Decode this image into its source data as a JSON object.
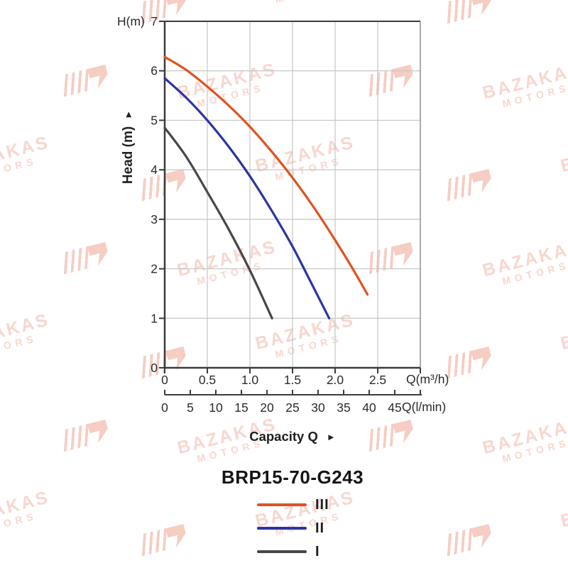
{
  "title": "BRP15-70-G243",
  "icons": {
    "right_arrow": "►"
  },
  "watermark": {
    "line1": "BAZAKAS",
    "line2": "MOTORS",
    "text_color": "#f7d7cf",
    "logo_color": "#f5cdc3"
  },
  "chart_data": {
    "type": "line",
    "title": "BRP15-70-G243",
    "grid": true,
    "legend_position": "bottom",
    "capacity_label": "Capacity Q",
    "y_axis": {
      "label": "H(m)",
      "axis_title": "Head (m)",
      "ticks": [
        0,
        1,
        2,
        3,
        4,
        5,
        6,
        7
      ],
      "tick_labels": [
        "0",
        "1",
        "2",
        "3",
        "4",
        "5",
        "6",
        "7"
      ],
      "range": [
        0,
        7
      ]
    },
    "x_axis_primary": {
      "label": "Q(m³/h)",
      "ticks": [
        0,
        0.5,
        1.0,
        1.5,
        2.0,
        2.5
      ],
      "tick_labels": [
        "0",
        "0.5",
        "1.0",
        "1.5",
        "2.0",
        "2.5"
      ],
      "range": [
        0,
        3
      ]
    },
    "x_axis_secondary": {
      "label": "Q(l/min)",
      "ticks": [
        0,
        5,
        10,
        15,
        20,
        25,
        30,
        35,
        40,
        45
      ],
      "tick_labels": [
        "0",
        "5",
        "10",
        "15",
        "20",
        "25",
        "30",
        "35",
        "40",
        "45"
      ],
      "range": [
        0,
        50
      ]
    },
    "series": [
      {
        "name": "III",
        "color": "#E0521F",
        "points": [
          [
            0,
            6.28
          ],
          [
            0.25,
            6.02
          ],
          [
            0.5,
            5.68
          ],
          [
            0.75,
            5.3
          ],
          [
            1.0,
            4.87
          ],
          [
            1.25,
            4.38
          ],
          [
            1.5,
            3.84
          ],
          [
            1.75,
            3.24
          ],
          [
            2.0,
            2.58
          ],
          [
            2.2,
            2.02
          ],
          [
            2.38,
            1.48
          ]
        ]
      },
      {
        "name": "II",
        "color": "#2B35A3",
        "points": [
          [
            0,
            5.85
          ],
          [
            0.25,
            5.46
          ],
          [
            0.5,
            5.0
          ],
          [
            0.75,
            4.47
          ],
          [
            1.0,
            3.87
          ],
          [
            1.25,
            3.19
          ],
          [
            1.5,
            2.45
          ],
          [
            1.7,
            1.78
          ],
          [
            1.93,
            1.0
          ]
        ]
      },
      {
        "name": "I",
        "color": "#474747",
        "points": [
          [
            0,
            4.85
          ],
          [
            0.25,
            4.27
          ],
          [
            0.5,
            3.55
          ],
          [
            0.75,
            2.8
          ],
          [
            1.0,
            1.97
          ],
          [
            1.26,
            1.0
          ]
        ]
      }
    ],
    "colors": {
      "grid": "#c6c6c6",
      "axis": "#3c3c3c",
      "right_border": "#8f8f8f",
      "text": "#2b2b2b"
    }
  }
}
